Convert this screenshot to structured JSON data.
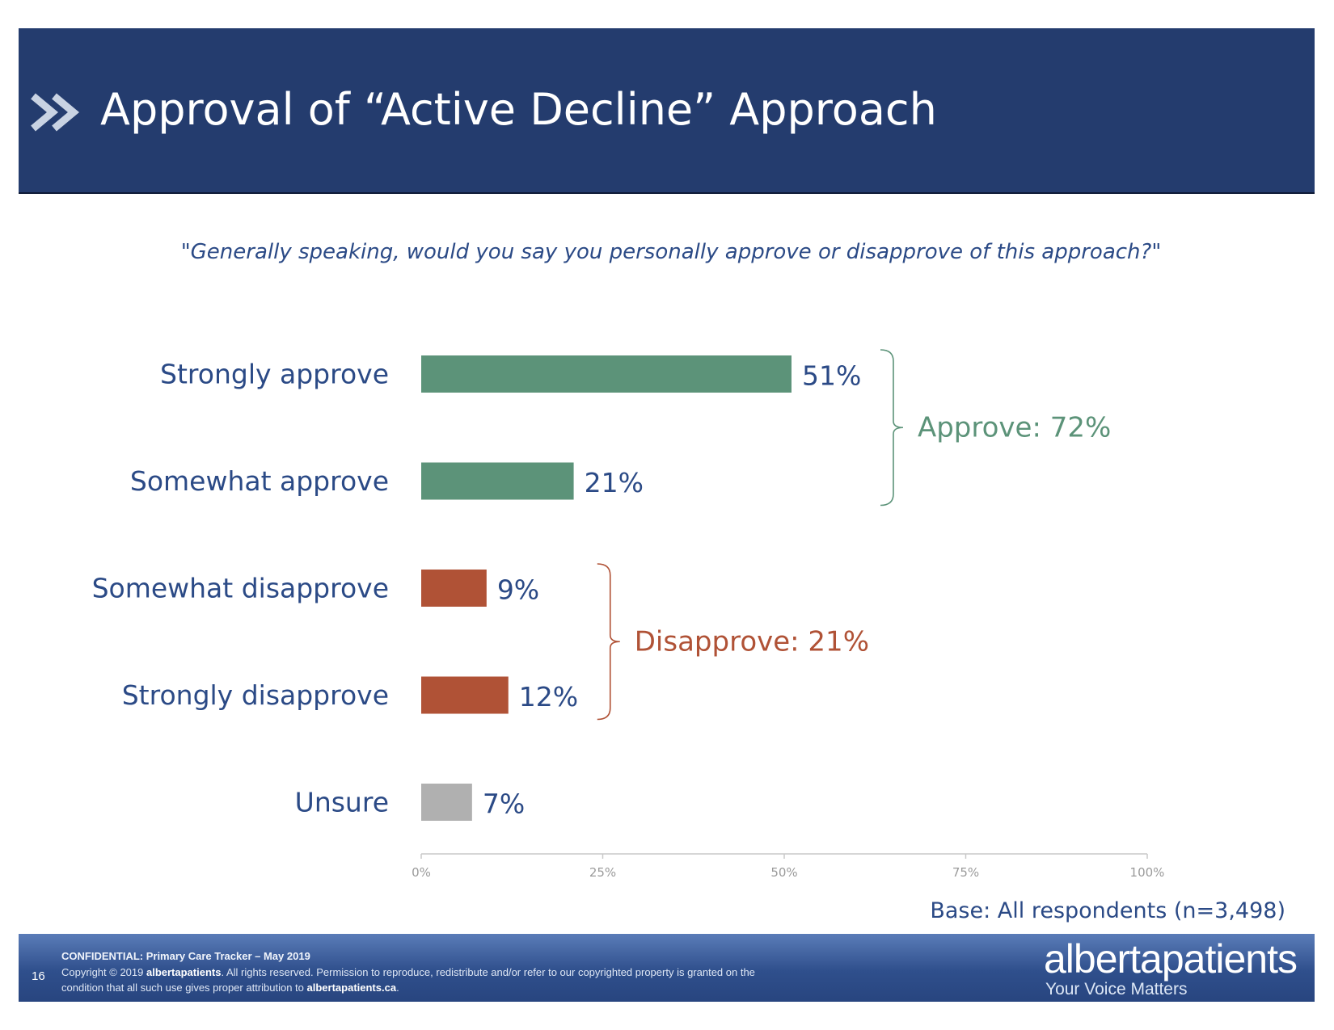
{
  "header": {
    "title": "Approval of “Active Decline” Approach",
    "icon": "double-chevron-icon"
  },
  "question": "\"Generally speaking, would you say you personally approve or disapprove of this approach?\"",
  "base_note": "Base: All respondents (n=3,498)",
  "colors": {
    "approve": "#5c9379",
    "disapprove": "#b05236",
    "unsure": "#b0b0b0",
    "label": "#2b4a86",
    "axis": "#9a9a9a"
  },
  "chart_data": {
    "type": "bar",
    "orientation": "horizontal",
    "categories": [
      "Strongly approve",
      "Somewhat approve",
      "Somewhat disapprove",
      "Strongly disapprove",
      "Unsure"
    ],
    "values": [
      51,
      21,
      9,
      12,
      7
    ],
    "value_labels": [
      "51%",
      "21%",
      "9%",
      "12%",
      "7%"
    ],
    "groups": [
      "approve",
      "approve",
      "disapprove",
      "disapprove",
      "unsure"
    ],
    "xlim": [
      0,
      100
    ],
    "xticks": [
      "0%",
      "25%",
      "50%",
      "75%",
      "100%"
    ],
    "annotations": [
      {
        "label": "Approve: 72%",
        "group": "approve",
        "spans": [
          0,
          1
        ]
      },
      {
        "label": "Disapprove: 21%",
        "group": "disapprove",
        "spans": [
          2,
          3
        ]
      }
    ]
  },
  "footer": {
    "page_number": "16",
    "confidential": "CONFIDENTIAL: Primary Care Tracker – May 2019",
    "copyright_1": "Copyright © 2019 ",
    "brand_bold": "albertapatients",
    "copyright_2": ". All rights reserved. Permission to reproduce, redistribute and/or refer to our copyrighted property is granted on the condition that all such use gives proper attribution to ",
    "site": "albertapatients.ca",
    "copyright_3": "."
  },
  "brand": {
    "name": "albertapatients",
    "tagline": "Your Voice Matters"
  }
}
